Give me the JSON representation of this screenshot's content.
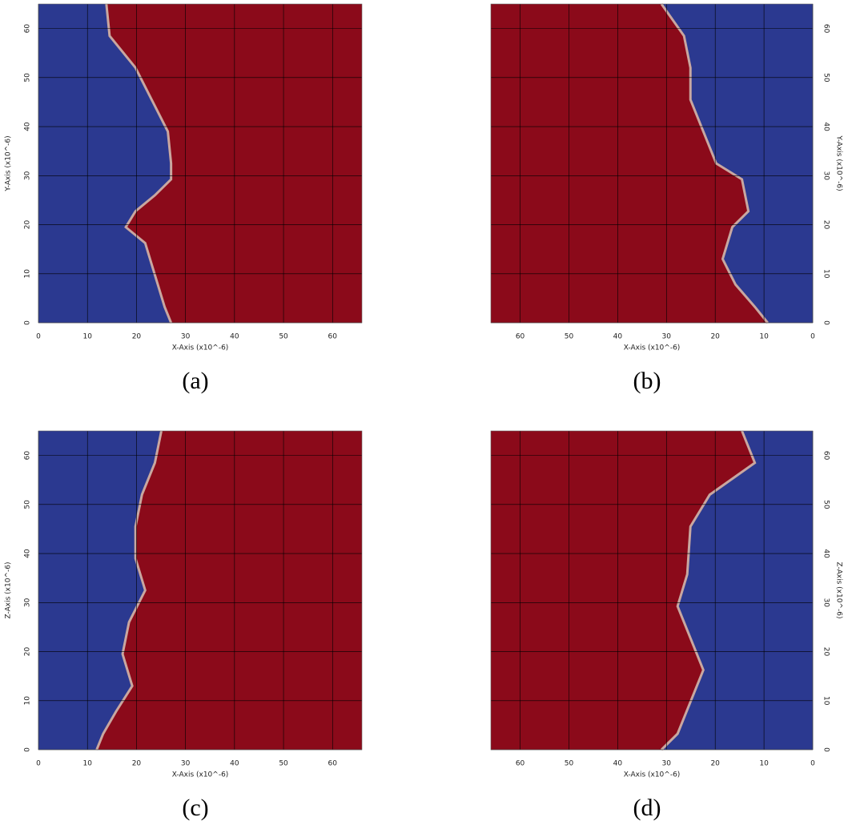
{
  "chart_data": [
    {
      "type": "volume",
      "caption": "(a)",
      "xlabel": "X-Axis (x10^-6)",
      "ylabel": "Y-Axis (x10^-6)",
      "xlim": [
        0,
        66
      ],
      "ylim": [
        0,
        65
      ],
      "xticks": [
        0,
        10,
        20,
        30,
        40,
        50,
        60
      ],
      "yticks": [
        0,
        10,
        20,
        30,
        40,
        50,
        60
      ],
      "yaxis_side": "left",
      "grid": true,
      "colors": [
        "#2b3990",
        "#8b0a1a"
      ]
    },
    {
      "type": "volume",
      "caption": "(b)",
      "xlabel": "X-Axis (x10^-6)",
      "ylabel": "Y-Axis (x10^-6)",
      "xlim": [
        66,
        0
      ],
      "ylim": [
        0,
        65
      ],
      "xticks": [
        60,
        50,
        40,
        30,
        20,
        10,
        0
      ],
      "yticks": [
        0,
        10,
        20,
        30,
        40,
        50,
        60
      ],
      "yaxis_side": "right",
      "grid": true,
      "colors": [
        "#2b3990",
        "#8b0a1a"
      ]
    },
    {
      "type": "volume",
      "caption": "(c)",
      "xlabel": "X-Axis (x10^-6)",
      "ylabel": "Z-Axis (x10^-6)",
      "xlim": [
        0,
        66
      ],
      "ylim": [
        0,
        65
      ],
      "xticks": [
        0,
        10,
        20,
        30,
        40,
        50,
        60
      ],
      "yticks": [
        0,
        10,
        20,
        30,
        40,
        50,
        60
      ],
      "yaxis_side": "left",
      "grid": true,
      "colors": [
        "#2b3990",
        "#8b0a1a"
      ]
    },
    {
      "type": "volume",
      "caption": "(d)",
      "xlabel": "X-Axis (x10^-6)",
      "ylabel": "Z-Axis (x10^-6)",
      "xlim": [
        66,
        0
      ],
      "ylim": [
        0,
        65
      ],
      "xticks": [
        60,
        50,
        40,
        30,
        20,
        10,
        0
      ],
      "yticks": [
        0,
        10,
        20,
        30,
        40,
        50,
        60
      ],
      "yaxis_side": "right",
      "grid": true,
      "colors": [
        "#2b3990",
        "#8b0a1a"
      ]
    }
  ]
}
